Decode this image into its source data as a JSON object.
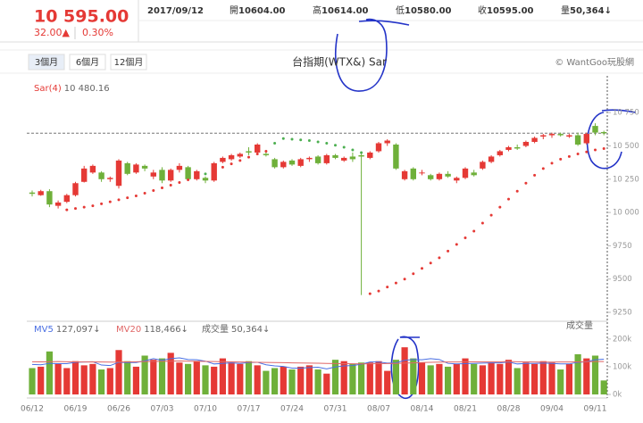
{
  "header": {
    "price": "10 595.00",
    "change": "32.00▲",
    "percent": "0.30%",
    "date": "2017/09/12",
    "fields": [
      {
        "label": "開",
        "value": "10604.00"
      },
      {
        "label": "高",
        "value": "10614.00"
      },
      {
        "label": "低",
        "value": "10580.00"
      },
      {
        "label": "收",
        "value": "10595.00"
      },
      {
        "label": "量",
        "value": "50,364↓"
      }
    ]
  },
  "toolbar": {
    "tabs": [
      "3個月",
      "6個月",
      "12個月"
    ],
    "credit": "© WantGoo玩股網"
  },
  "chart_data": [
    {
      "type": "candlestick",
      "title": "台指期(WTX&) Sar",
      "up_color": "#e53935",
      "down_color": "#6fb03a",
      "open": [
        10150,
        10130,
        10160,
        10050,
        10080,
        10130,
        10230,
        10300,
        10300,
        10250,
        10200,
        10370,
        10300,
        10350,
        10270,
        10320,
        10240,
        10320,
        10340,
        10250,
        10260,
        10240,
        10380,
        10400,
        10420,
        10460,
        10450,
        10440,
        10400,
        10340,
        10390,
        10350,
        10400,
        10420,
        10370,
        10430,
        10390,
        10420,
        10430,
        10410,
        10460,
        10520,
        10510,
        10250,
        10330,
        10300,
        10280,
        10250,
        10290,
        10240,
        10260,
        10300,
        10330,
        10380,
        10430,
        10470,
        10490,
        10500,
        10530,
        10570,
        10580,
        10590,
        10570,
        10580,
        10520,
        10650,
        10604
      ],
      "high": [
        10165,
        10170,
        10175,
        10090,
        10140,
        10230,
        10350,
        10360,
        10310,
        10270,
        10400,
        10380,
        10370,
        10360,
        10320,
        10340,
        10330,
        10370,
        10350,
        10320,
        10270,
        10380,
        10420,
        10440,
        10450,
        10490,
        10520,
        10470,
        10410,
        10390,
        10400,
        10410,
        10420,
        10430,
        10440,
        10440,
        10420,
        10450,
        10440,
        10460,
        10530,
        10550,
        10520,
        10320,
        10340,
        10320,
        10290,
        10300,
        10310,
        10270,
        10340,
        10320,
        10390,
        10430,
        10470,
        10500,
        10510,
        10540,
        10570,
        10590,
        10600,
        10600,
        10590,
        10600,
        10600,
        10670,
        10614
      ],
      "low": [
        10120,
        10125,
        10040,
        10030,
        10070,
        10120,
        10225,
        10290,
        10230,
        10230,
        10180,
        10280,
        10290,
        10310,
        10250,
        10220,
        10230,
        10300,
        10240,
        10240,
        10220,
        10230,
        10370,
        10390,
        10410,
        10430,
        10440,
        10420,
        10330,
        10330,
        10350,
        10340,
        10380,
        10360,
        10360,
        10400,
        10380,
        10380,
        9380,
        10400,
        10450,
        10500,
        10320,
        10240,
        10240,
        10280,
        10240,
        10240,
        10260,
        10220,
        10250,
        10270,
        10320,
        10370,
        10420,
        10460,
        10470,
        10490,
        10520,
        10550,
        10560,
        10570,
        10560,
        10500,
        10510,
        10580,
        10580
      ],
      "close": [
        10140,
        10160,
        10060,
        10075,
        10130,
        10220,
        10330,
        10350,
        10250,
        10260,
        10390,
        10290,
        10360,
        10330,
        10300,
        10240,
        10320,
        10350,
        10250,
        10310,
        10240,
        10370,
        10410,
        10430,
        10440,
        10450,
        10510,
        10430,
        10340,
        10380,
        10360,
        10400,
        10410,
        10370,
        10430,
        10410,
        10410,
        10400,
        10420,
        10450,
        10520,
        10540,
        10330,
        10310,
        10250,
        10300,
        10250,
        10290,
        10270,
        10260,
        10330,
        10280,
        10380,
        10420,
        10460,
        10490,
        10480,
        10530,
        10560,
        10580,
        10590,
        10580,
        10580,
        10510,
        10590,
        10600,
        10595
      ],
      "sar": {
        "name": "Sar(4)",
        "color": "#e53935",
        "value_label": "10 480.16",
        "values": [
          null,
          null,
          null,
          null,
          10020,
          10030,
          10040,
          10050,
          10065,
          10080,
          10095,
          10110,
          10125,
          10145,
          10165,
          10185,
          10205,
          10225,
          10245,
          10265,
          10290,
          10315,
          10340,
          10365,
          10390,
          10415,
          10440,
          10460,
          10520,
          10555,
          10550,
          10545,
          10540,
          10530,
          10520,
          10505,
          10490,
          10470,
          10450,
          9390,
          9410,
          9440,
          9470,
          9500,
          9540,
          9580,
          9620,
          9660,
          9710,
          9760,
          9810,
          9860,
          9920,
          9980,
          10040,
          10100,
          10160,
          10220,
          10280,
          10330,
          10370,
          10400,
          10420,
          10440,
          10455,
          10470,
          10480.16
        ]
      },
      "up_sar_color": "#4caf50",
      "ylim": [
        9183,
        11026
      ],
      "yticks": [
        9250,
        9500,
        9750,
        {
          "value": 10000,
          "label": "10 000"
        },
        {
          "value": 10250,
          "label": "10 250"
        },
        {
          "value": 10500,
          "label": "10 500"
        },
        {
          "value": 10750,
          "label": "10 750"
        }
      ]
    },
    {
      "type": "bar",
      "name": "成交量",
      "value_label": "50,364↓",
      "categories": [
        "06/12",
        null,
        null,
        null,
        null,
        "06/19",
        null,
        null,
        null,
        null,
        "06/26",
        null,
        null,
        null,
        null,
        "07/03",
        null,
        null,
        null,
        null,
        "07/10",
        null,
        null,
        null,
        null,
        "07/17",
        null,
        null,
        null,
        null,
        "07/24",
        null,
        null,
        null,
        null,
        "07/31",
        null,
        null,
        null,
        null,
        "08/07",
        null,
        null,
        null,
        null,
        "08/14",
        null,
        null,
        null,
        null,
        "08/21",
        null,
        null,
        null,
        null,
        "08/28",
        null,
        null,
        null,
        null,
        "09/04",
        null,
        null,
        null,
        null,
        "09/11",
        null
      ],
      "values": [
        95000,
        100000,
        155000,
        110000,
        95000,
        120000,
        105000,
        110000,
        90000,
        95000,
        160000,
        120000,
        100000,
        140000,
        125000,
        130000,
        150000,
        115000,
        110000,
        120000,
        105000,
        100000,
        130000,
        115000,
        110000,
        120000,
        105000,
        85000,
        95000,
        100000,
        90000,
        100000,
        105000,
        90000,
        75000,
        125000,
        120000,
        110000,
        115000,
        115000,
        120000,
        85000,
        125000,
        170000,
        130000,
        115000,
        105000,
        110000,
        100000,
        110000,
        130000,
        110000,
        105000,
        115000,
        110000,
        125000,
        95000,
        115000,
        110000,
        120000,
        115000,
        90000,
        110000,
        145000,
        130000,
        140000,
        50364
      ],
      "series": [
        {
          "name": "MV5",
          "color": "#4a6fe3",
          "value_label": "127,097↓",
          "values": [
            108000,
            107000,
            112000,
            111000,
            111000,
            116000,
            117000,
            118000,
            106000,
            104000,
            116000,
            115000,
            115000,
            121000,
            129000,
            123000,
            129000,
            132000,
            126000,
            125000,
            120000,
            110000,
            112000,
            114000,
            112000,
            115000,
            116000,
            107000,
            103000,
            101000,
            95000,
            95000,
            97000,
            98000,
            92000,
            99000,
            103000,
            104000,
            109000,
            117000,
            117000,
            113000,
            114000,
            123000,
            126000,
            125000,
            129000,
            126000,
            112000,
            110000,
            111000,
            112000,
            113000,
            114000,
            114000,
            117000,
            110000,
            112000,
            112000,
            113000,
            112000,
            110000,
            110000,
            116000,
            118000,
            125000,
            127097
          ]
        },
        {
          "name": "MV20",
          "color": "#e06666",
          "value_label": "118,466↓",
          "values": [
            118000,
            117500,
            118000,
            118500,
            118000,
            117500,
            117000,
            117500,
            117000,
            116500,
            117000,
            117500,
            118000,
            118500,
            119000,
            119500,
            120000,
            120500,
            120000,
            119500,
            119000,
            118500,
            118000,
            117500,
            117000,
            116500,
            116000,
            115500,
            115000,
            114500,
            114000,
            113500,
            113000,
            112500,
            112000,
            111500,
            111000,
            110500,
            110000,
            110500,
            111000,
            111500,
            112000,
            113000,
            114000,
            115000,
            116000,
            116500,
            117000,
            117000,
            117500,
            117500,
            118000,
            118000,
            118000,
            118500,
            118000,
            117500,
            117000,
            116500,
            116500,
            117000,
            117000,
            117500,
            118000,
            118500,
            118466
          ]
        }
      ],
      "ylim": [
        0,
        222000
      ],
      "yticks": [
        {
          "value": 0,
          "label": "0k"
        },
        {
          "value": 100000,
          "label": "100k"
        },
        {
          "value": 200000,
          "label": "200k"
        }
      ]
    }
  ]
}
